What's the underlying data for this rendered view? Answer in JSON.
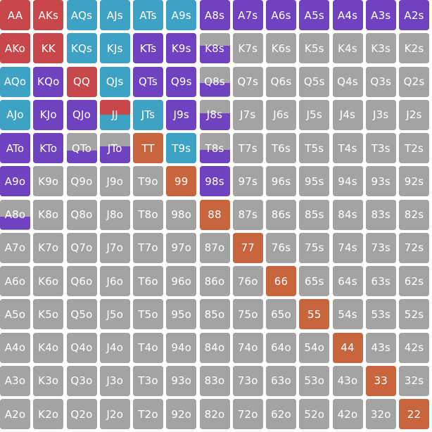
{
  "colors": {
    "raise": "#c8474a",
    "call": "#3da2c3",
    "allin": "#6f42c1",
    "fold": "#a3a3a3",
    "pair": "#c8653c"
  },
  "grid": {
    "hands": [
      [
        "AA",
        "AKs",
        "AQs",
        "AJs",
        "ATs",
        "A9s",
        "A8s",
        "A7s",
        "A6s",
        "A5s",
        "A4s",
        "A3s",
        "A2s"
      ],
      [
        "AKo",
        "KK",
        "KQs",
        "KJs",
        "KTs",
        "K9s",
        "K8s",
        "K7s",
        "K6s",
        "K5s",
        "K4s",
        "K3s",
        "K2s"
      ],
      [
        "AQo",
        "KQo",
        "QQ",
        "QJs",
        "QTs",
        "Q9s",
        "Q8s",
        "Q7s",
        "Q6s",
        "Q5s",
        "Q4s",
        "Q3s",
        "Q2s"
      ],
      [
        "AJo",
        "KJo",
        "QJo",
        "JJ",
        "JTs",
        "J9s",
        "J8s",
        "J7s",
        "J6s",
        "J5s",
        "J4s",
        "J3s",
        "J2s"
      ],
      [
        "ATo",
        "KTo",
        "QTo",
        "JTo",
        "TT",
        "T9s",
        "T8s",
        "T7s",
        "T6s",
        "T5s",
        "T4s",
        "T3s",
        "T2s"
      ],
      [
        "A9o",
        "K9o",
        "Q9o",
        "J9o",
        "T9o",
        "99",
        "98s",
        "97s",
        "96s",
        "95s",
        "94s",
        "93s",
        "92s"
      ],
      [
        "A8o",
        "K8o",
        "Q8o",
        "J8o",
        "T8o",
        "98o",
        "88",
        "87s",
        "86s",
        "85s",
        "84s",
        "83s",
        "82s"
      ],
      [
        "A7o",
        "K7o",
        "Q7o",
        "J7o",
        "T7o",
        "97o",
        "87o",
        "77",
        "76s",
        "75s",
        "74s",
        "73s",
        "72s"
      ],
      [
        "A6o",
        "K6o",
        "Q6o",
        "J6o",
        "T6o",
        "96o",
        "86o",
        "76o",
        "66",
        "65s",
        "64s",
        "63s",
        "62s"
      ],
      [
        "A5o",
        "K5o",
        "Q5o",
        "J5o",
        "T5o",
        "95o",
        "85o",
        "75o",
        "65o",
        "55",
        "54s",
        "53s",
        "52s"
      ],
      [
        "A4o",
        "K4o",
        "Q4o",
        "J4o",
        "T4o",
        "94o",
        "84o",
        "74o",
        "64o",
        "54o",
        "44",
        "43s",
        "42s"
      ],
      [
        "A3o",
        "K3o",
        "Q3o",
        "J3o",
        "T3o",
        "93o",
        "83o",
        "73o",
        "63o",
        "53o",
        "43o",
        "33",
        "32s"
      ],
      [
        "A2o",
        "K2o",
        "Q2o",
        "J2o",
        "T2o",
        "92o",
        "82o",
        "72o",
        "62o",
        "52o",
        "42o",
        "32o",
        "22"
      ]
    ],
    "mixes": {
      "AA": [
        [
          "raise",
          1
        ]
      ],
      "AKs": [
        [
          "raise",
          1
        ]
      ],
      "AQs": [
        [
          "call",
          1
        ]
      ],
      "AJs": [
        [
          "call",
          1
        ]
      ],
      "ATs": [
        [
          "call",
          1
        ]
      ],
      "A9s": [
        [
          "call",
          1
        ]
      ],
      "A8s": [
        [
          "allin",
          1
        ]
      ],
      "A7s": [
        [
          "allin",
          1
        ]
      ],
      "A6s": [
        [
          "allin",
          1
        ]
      ],
      "A5s": [
        [
          "allin",
          1
        ]
      ],
      "A4s": [
        [
          "allin",
          1
        ]
      ],
      "A3s": [
        [
          "allin",
          1
        ]
      ],
      "A2s": [
        [
          "allin",
          1
        ]
      ],
      "AKo": [
        [
          "raise",
          1
        ]
      ],
      "KK": [
        [
          "raise",
          1
        ]
      ],
      "KQs": [
        [
          "call",
          1
        ]
      ],
      "KJs": [
        [
          "call",
          1
        ]
      ],
      "KTs": [
        [
          "allin",
          1
        ]
      ],
      "K9s": [
        [
          "allin",
          1
        ]
      ],
      "K8s": [
        [
          "fold",
          0.42
        ],
        [
          "allin",
          0.58
        ]
      ],
      "AQo": [
        [
          "call",
          1
        ]
      ],
      "KQo": [
        [
          "allin",
          1
        ]
      ],
      "QQ": [
        [
          "raise",
          1
        ]
      ],
      "QJs": [
        [
          "call",
          1
        ]
      ],
      "QTs": [
        [
          "allin",
          1
        ]
      ],
      "Q9s": [
        [
          "allin",
          1
        ]
      ],
      "Q8s": [
        [
          "fold",
          0.55
        ],
        [
          "allin",
          0.45
        ]
      ],
      "AJo": [
        [
          "call",
          1
        ]
      ],
      "KJo": [
        [
          "allin",
          1
        ]
      ],
      "QJo": [
        [
          "allin",
          1
        ]
      ],
      "JJ": [
        [
          "raise",
          0.5
        ],
        [
          "call",
          0.5
        ]
      ],
      "JTs": [
        [
          "call",
          1
        ]
      ],
      "J9s": [
        [
          "allin",
          1
        ]
      ],
      "J8s": [
        [
          "fold",
          0.45
        ],
        [
          "allin",
          0.55
        ]
      ],
      "ATo": [
        [
          "allin",
          1
        ]
      ],
      "KTo": [
        [
          "allin",
          1
        ]
      ],
      "QTo": [
        [
          "fold",
          0.58
        ],
        [
          "allin",
          0.42
        ]
      ],
      "JTo": [
        [
          "fold",
          0.45
        ],
        [
          "allin",
          0.55
        ]
      ],
      "TT": [
        [
          "pair",
          1
        ]
      ],
      "T9s": [
        [
          "call",
          1
        ]
      ],
      "T8s": [
        [
          "fold",
          0.55
        ],
        [
          "allin",
          0.45
        ]
      ],
      "A9o": [
        [
          "allin",
          1
        ]
      ],
      "99": [
        [
          "pair",
          1
        ]
      ],
      "98s": [
        [
          "allin",
          1
        ]
      ],
      "A8o": [
        [
          "fold",
          0.58
        ],
        [
          "allin",
          0.42
        ]
      ],
      "88": [
        [
          "pair",
          1
        ]
      ],
      "77": [
        [
          "pair",
          1
        ]
      ],
      "66": [
        [
          "pair",
          1
        ]
      ],
      "55": [
        [
          "pair",
          1
        ]
      ],
      "44": [
        [
          "pair",
          1
        ]
      ],
      "33": [
        [
          "pair",
          1
        ]
      ],
      "22": [
        [
          "pair",
          1
        ]
      ]
    },
    "selected": "A9o"
  }
}
